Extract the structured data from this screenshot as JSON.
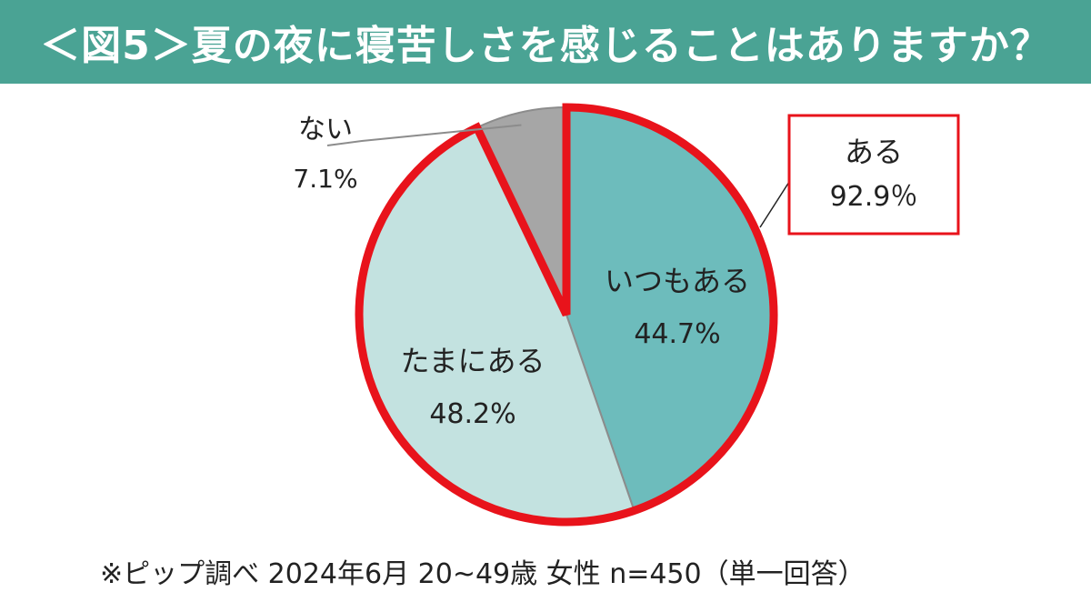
{
  "title": "＜図5＞夏の夜に寝苦しさを感じることはありますか？",
  "footnote": "※ピップ調べ 2024年6月 20~49歳 女性 n=450（単一回答）",
  "colors": {
    "title_bg": "#4aa394",
    "title_text": "#ffffff",
    "highlight": "#e8131b"
  },
  "chart_data": {
    "type": "pie",
    "start": "12 o'clock",
    "direction": "clockwise",
    "slices": [
      {
        "label": "いつもある",
        "value": 44.7,
        "value_label": "44.7%",
        "color": "#6dbcbc"
      },
      {
        "label": "たまにある",
        "value": 48.2,
        "value_label": "48.2%",
        "color": "#c3e2e0"
      },
      {
        "label": "ない",
        "value": 7.1,
        "value_label": "7.1%",
        "color": "#a6a6a6"
      }
    ],
    "callout": {
      "label": "ある",
      "value_label": "92.9％",
      "value": 92.9
    }
  }
}
